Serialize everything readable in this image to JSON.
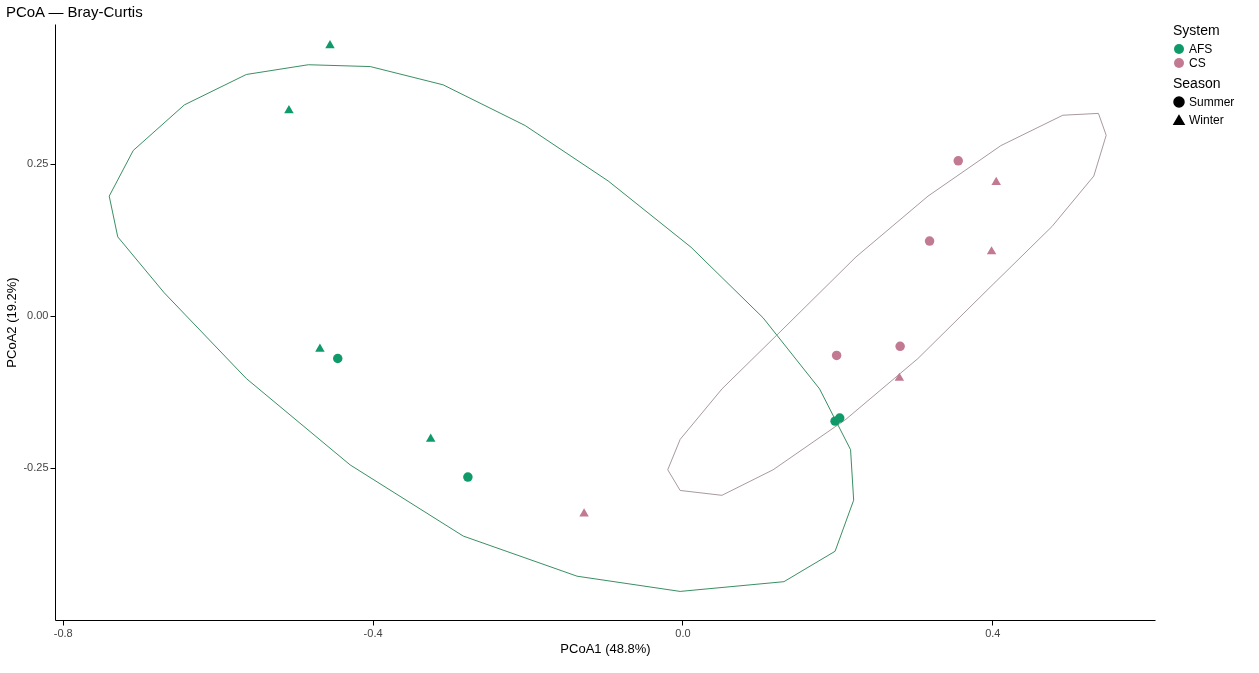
{
  "chart_data": {
    "type": "scatter",
    "title": "PCoA — Bray-Curtis",
    "xlabel": "PCoA1 (48.8%)",
    "ylabel": "PCoA2 (19.2%)",
    "legend_title": [
      "System",
      "Season"
    ],
    "legend": "right",
    "grid": false,
    "xlim": [
      -0.81,
      0.61
    ],
    "ylim": [
      -0.5,
      0.48
    ],
    "xticks": [
      {
        "value": -0.8,
        "label": "-0.8"
      },
      {
        "value": -0.4,
        "label": "-0.4"
      },
      {
        "value": 0,
        "label": "0.0"
      },
      {
        "value": 0.4,
        "label": "0.4"
      }
    ],
    "yticks": [
      {
        "value": -0.25,
        "label": "-0.25"
      },
      {
        "value": 0,
        "label": "0.00"
      },
      {
        "value": 0.25,
        "label": "0.25"
      }
    ],
    "series": [
      {
        "name": "AFS",
        "marker": "circle",
        "color": "#109a6a",
        "x": [
          -0.445,
          -0.277,
          0.197,
          0.203
        ],
        "values": [
          -0.07,
          -0.265,
          -0.173,
          -0.168
        ]
      },
      {
        "marker": "triangle",
        "color": "#109a6a",
        "x": [
          -0.455,
          -0.508,
          -0.468,
          -0.325
        ],
        "values": [
          0.447,
          0.34,
          -0.052,
          -0.2
        ]
      },
      {
        "name": "CS",
        "marker": "circle",
        "color": "#c27a93",
        "x": [
          0.356,
          0.319,
          0.281,
          0.199
        ],
        "values": [
          0.255,
          0.123,
          -0.05,
          -0.065
        ]
      },
      {
        "marker": "triangle",
        "color": "#c27a93",
        "x": [
          0.405,
          0.399,
          0.28,
          -0.127
        ],
        "values": [
          0.222,
          0.108,
          -0.1,
          -0.323
        ]
      },
      {
        "name": "Summer",
        "marker": "circle",
        "color": "#000000"
      },
      {
        "name": "Winter",
        "marker": "triangle",
        "color": "#000000"
      }
    ]
  }
}
